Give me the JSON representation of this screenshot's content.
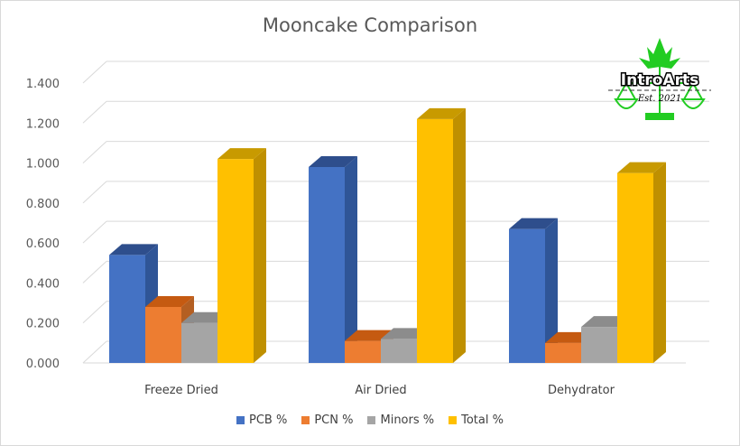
{
  "chart_data": {
    "type": "bar",
    "title": "Mooncake Comparison",
    "categories": [
      "Freeze Dried",
      "Air Dried",
      "Dehydrator"
    ],
    "series": [
      {
        "name": "PCB %",
        "color": "#4472C4",
        "side": "#2F5597",
        "top": "#2E4E8C",
        "values": [
          0.54,
          0.98,
          0.67
        ]
      },
      {
        "name": "PCN %",
        "color": "#ED7D31",
        "side": "#B45F22",
        "top": "#C55A11",
        "values": [
          0.28,
          0.11,
          0.1
        ]
      },
      {
        "name": "Minors %",
        "color": "#A5A5A5",
        "side": "#7F7F7F",
        "top": "#8C8C8C",
        "values": [
          0.2,
          0.12,
          0.18
        ]
      },
      {
        "name": "Total %",
        "color": "#FFC000",
        "side": "#BF9000",
        "top": "#C89A00",
        "values": [
          1.02,
          1.22,
          0.95
        ]
      }
    ],
    "ylim": [
      0,
      1.4
    ],
    "yticks": [
      "0.000",
      "0.200",
      "0.400",
      "0.600",
      "0.800",
      "1.000",
      "1.200",
      "1.400"
    ],
    "grid": true,
    "legend": "bottom",
    "three_d": true
  },
  "logo": {
    "text": "IntroArts",
    "subtext": "Est. 2021",
    "color": "#22CC22"
  }
}
